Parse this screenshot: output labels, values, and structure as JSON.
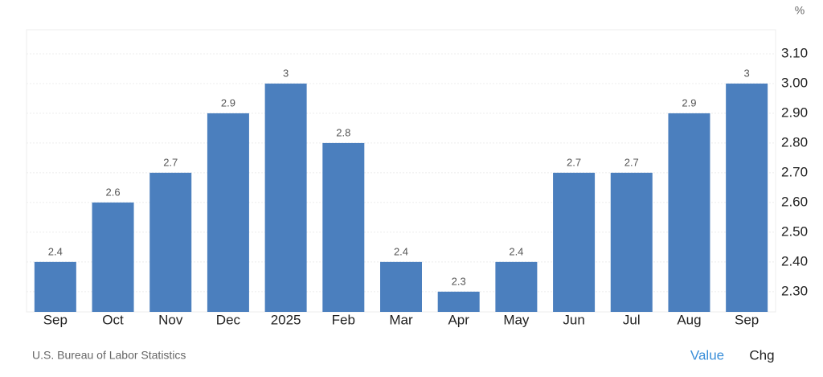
{
  "chart_data": {
    "type": "bar",
    "unit": "%",
    "categories": [
      "Sep",
      "Oct",
      "Nov",
      "Dec",
      "2025",
      "Feb",
      "Mar",
      "Apr",
      "May",
      "Jun",
      "Jul",
      "Aug",
      "Sep"
    ],
    "values": [
      2.4,
      2.6,
      2.7,
      2.9,
      3,
      2.8,
      2.4,
      2.3,
      2.4,
      2.7,
      2.7,
      2.9,
      3
    ],
    "color": "#4b7fbe",
    "ylim": [
      2.232,
      3.181
    ],
    "yticks": [
      {
        "value": 2.3,
        "label": "2.30"
      },
      {
        "value": 2.4,
        "label": "2.40"
      },
      {
        "value": 2.5,
        "label": "2.50"
      },
      {
        "value": 2.6,
        "label": "2.60"
      },
      {
        "value": 2.7,
        "label": "2.70"
      },
      {
        "value": 2.8,
        "label": "2.80"
      },
      {
        "value": 2.9,
        "label": "2.90"
      },
      {
        "value": 3.0,
        "label": "3.00"
      },
      {
        "value": 3.1,
        "label": "3.10"
      }
    ],
    "grid": true
  },
  "source": "U.S. Bureau of Labor Statistics",
  "toggles": [
    "Value",
    "Chg"
  ]
}
